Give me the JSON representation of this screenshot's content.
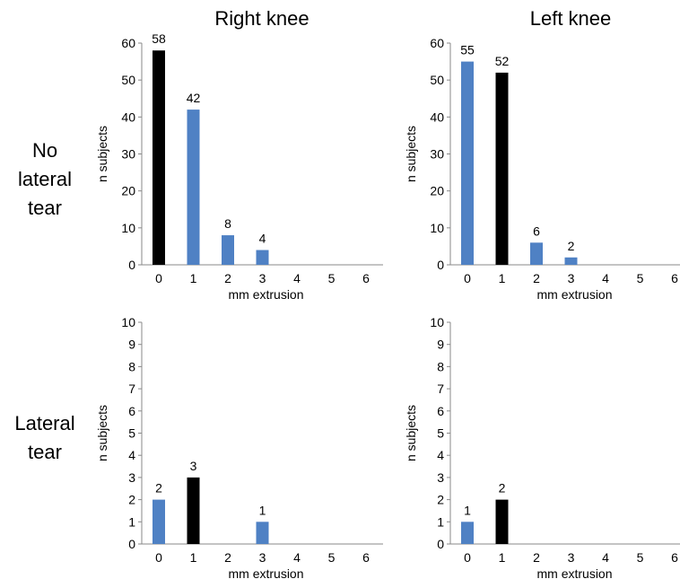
{
  "column_titles": [
    "Right knee",
    "Left knee"
  ],
  "row_labels": [
    [
      "No",
      "lateral",
      "tear"
    ],
    [
      "Lateral",
      "tear"
    ]
  ],
  "colors": {
    "highlight": "#000000",
    "bar": "#4f81c4",
    "axis": "#888888"
  },
  "chart_data": [
    {
      "type": "bar",
      "title": "",
      "panel": "No lateral tear / Right knee",
      "categories": [
        "0",
        "1",
        "2",
        "3",
        "4",
        "5",
        "6"
      ],
      "values": [
        58,
        42,
        8,
        4,
        0,
        0,
        0
      ],
      "data_labels": [
        "58",
        "42",
        "8",
        "4",
        "",
        "",
        ""
      ],
      "highlight_index": 0,
      "xlabel": "mm extrusion",
      "ylabel": "n subjects",
      "ylim": [
        0,
        60
      ],
      "yticks": [
        "0",
        "10",
        "20",
        "30",
        "40",
        "50",
        "60"
      ]
    },
    {
      "type": "bar",
      "title": "",
      "panel": "No lateral tear / Left knee",
      "categories": [
        "0",
        "1",
        "2",
        "3",
        "4",
        "5",
        "6"
      ],
      "values": [
        55,
        52,
        6,
        2,
        0,
        0,
        0
      ],
      "data_labels": [
        "55",
        "52",
        "6",
        "2",
        "",
        "",
        ""
      ],
      "highlight_index": 1,
      "xlabel": "mm extrusion",
      "ylabel": "n subjects",
      "ylim": [
        0,
        60
      ],
      "yticks": [
        "0",
        "10",
        "20",
        "30",
        "40",
        "50",
        "60"
      ]
    },
    {
      "type": "bar",
      "title": "",
      "panel": "Lateral tear / Right knee",
      "categories": [
        "0",
        "1",
        "2",
        "3",
        "4",
        "5",
        "6"
      ],
      "values": [
        2,
        3,
        0,
        1,
        0,
        0,
        0
      ],
      "data_labels": [
        "2",
        "3",
        "",
        "1",
        "",
        "",
        ""
      ],
      "highlight_index": 1,
      "xlabel": "mm extrusion",
      "ylabel": "n subjects",
      "ylim": [
        0,
        10
      ],
      "yticks": [
        "0",
        "1",
        "2",
        "3",
        "4",
        "5",
        "6",
        "7",
        "8",
        "9",
        "10"
      ]
    },
    {
      "type": "bar",
      "title": "",
      "panel": "Lateral tear / Left knee",
      "categories": [
        "0",
        "1",
        "2",
        "3",
        "4",
        "5",
        "6"
      ],
      "values": [
        1,
        2,
        0,
        0,
        0,
        0,
        0
      ],
      "data_labels": [
        "1",
        "2",
        "",
        "",
        "",
        "",
        ""
      ],
      "highlight_index": 1,
      "xlabel": "mm extrusion",
      "ylabel": "n subjects",
      "ylim": [
        0,
        10
      ],
      "yticks": [
        "0",
        "1",
        "2",
        "3",
        "4",
        "5",
        "6",
        "7",
        "8",
        "9",
        "10"
      ]
    }
  ]
}
